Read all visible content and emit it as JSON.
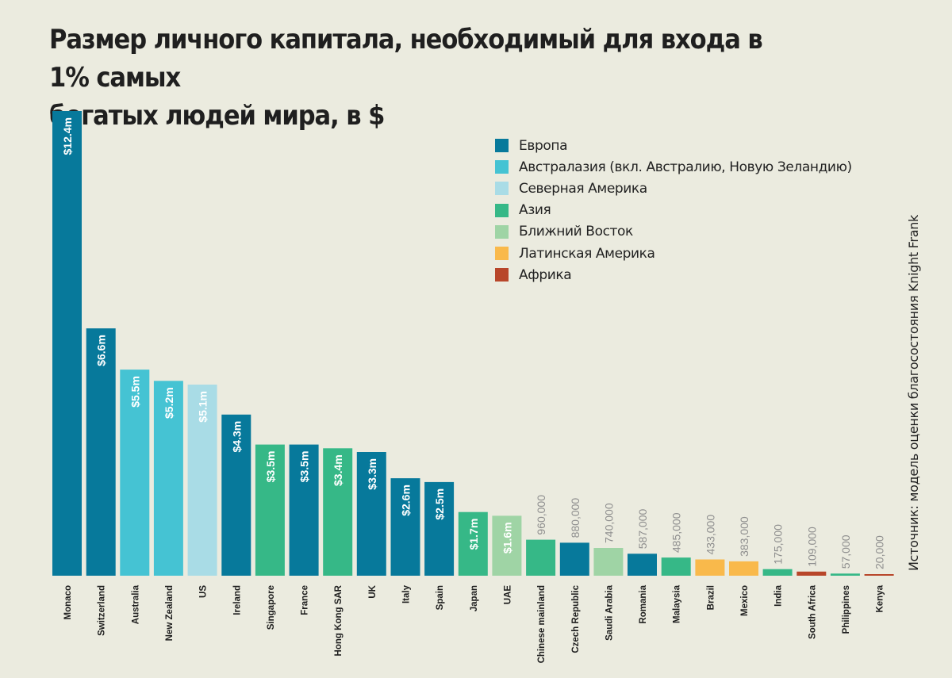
{
  "title": {
    "line1": "Размер личного капитала, необходимый для входа в 1% самых",
    "line2": "богатых людей мира, в $"
  },
  "source": "Источник: модель оценки благосостояния Knight Frank",
  "legend": [
    {
      "label": "Европа",
      "color": "#07799b"
    },
    {
      "label": "Австралазия (вкл. Австралию, Новую Зеландию)",
      "color": "#45c3d3"
    },
    {
      "label": "Северная Америка",
      "color": "#a9dce6"
    },
    {
      "label": "Азия",
      "color": "#36b887"
    },
    {
      "label": "Ближний Восток",
      "color": "#9fd4a5"
    },
    {
      "label": "Латинская Америка",
      "color": "#f9b94b"
    },
    {
      "label": "Африка",
      "color": "#b8462a"
    }
  ],
  "chart_data": {
    "type": "bar",
    "title": "Размер личного капитала, необходимый для входа в 1% самых богатых людей мира, в $",
    "xlabel": "",
    "ylabel": "",
    "ylim": [
      0,
      12400000
    ],
    "categories": [
      "Monaco",
      "Switzerland",
      "Australia",
      "New Zealand",
      "US",
      "Ireland",
      "Singapore",
      "France",
      "Hong Kong SAR",
      "UK",
      "Italy",
      "Spain",
      "Japan",
      "UAE",
      "Chinese mainland",
      "Czech Republic",
      "Saudi Arabia",
      "Romania",
      "Malaysia",
      "Brazil",
      "Mexico",
      "India",
      "South Africa",
      "Philippines",
      "Kenya"
    ],
    "values": [
      12400000,
      6600000,
      5500000,
      5200000,
      5100000,
      4300000,
      3500000,
      3500000,
      3400000,
      3300000,
      2600000,
      2500000,
      1700000,
      1600000,
      960000,
      880000,
      740000,
      587000,
      485000,
      433000,
      383000,
      175000,
      109000,
      57000,
      20000
    ],
    "labels": [
      "$12.4m",
      "$6.6m",
      "$5.5m",
      "$5.2m",
      "$5.1m",
      "$4.3m",
      "$3.5m",
      "$3.5m",
      "$3.4m",
      "$3.3m",
      "$2.6m",
      "$2.5m",
      "$1.7m",
      "$1.6m",
      "960,000",
      "880,000",
      "740,000",
      "587,000",
      "485,000",
      "433,000",
      "383,000",
      "175,000",
      "109,000",
      "57,000",
      "20,000"
    ],
    "regions": [
      "Европа",
      "Европа",
      "Австралазия (вкл. Австралию, Новую Зеландию)",
      "Австралазия (вкл. Австралию, Новую Зеландию)",
      "Северная Америка",
      "Европа",
      "Азия",
      "Европа",
      "Азия",
      "Европа",
      "Европа",
      "Европа",
      "Азия",
      "Ближний Восток",
      "Азия",
      "Европа",
      "Ближний Восток",
      "Европа",
      "Азия",
      "Латинская Америка",
      "Латинская Америка",
      "Азия",
      "Африка",
      "Азия",
      "Африка"
    ],
    "colors": [
      "#07799b",
      "#07799b",
      "#45c3d3",
      "#45c3d3",
      "#a9dce6",
      "#07799b",
      "#36b887",
      "#07799b",
      "#36b887",
      "#07799b",
      "#07799b",
      "#07799b",
      "#36b887",
      "#9fd4a5",
      "#36b887",
      "#07799b",
      "#9fd4a5",
      "#07799b",
      "#36b887",
      "#f9b94b",
      "#f9b94b",
      "#36b887",
      "#b8462a",
      "#36b887",
      "#b8462a"
    ]
  }
}
